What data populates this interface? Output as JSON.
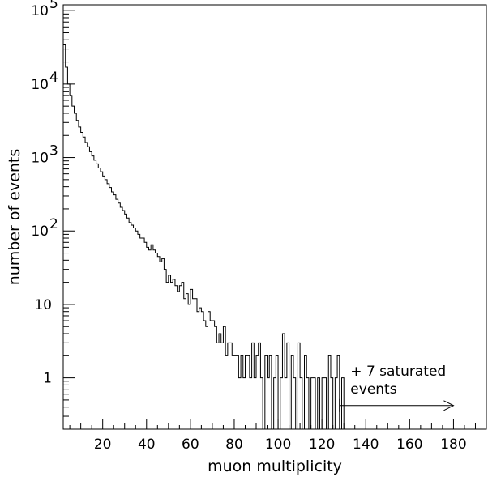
{
  "chart_data": {
    "type": "histogram",
    "xlabel": "muon multiplicity",
    "ylabel": "number of events",
    "xlim": [
      2,
      195
    ],
    "ylim": [
      0.2,
      120000
    ],
    "y_scale": "log",
    "grid": false,
    "x_ticks": [
      {
        "value": 20,
        "label": "20"
      },
      {
        "value": 40,
        "label": "40"
      },
      {
        "value": 60,
        "label": "60"
      },
      {
        "value": 80,
        "label": "80"
      },
      {
        "value": 100,
        "label": "100"
      },
      {
        "value": 120,
        "label": "120"
      },
      {
        "value": 140,
        "label": "140"
      },
      {
        "value": 160,
        "label": "160"
      },
      {
        "value": 180,
        "label": "180"
      }
    ],
    "y_ticks": [
      {
        "value": 1,
        "label": "1",
        "exp": ""
      },
      {
        "value": 10,
        "label": "10",
        "exp": ""
      },
      {
        "value": 100,
        "label": "10",
        "exp": "2"
      },
      {
        "value": 1000,
        "label": "10",
        "exp": "3"
      },
      {
        "value": 10000,
        "label": "10",
        "exp": "4"
      },
      {
        "value": 100000,
        "label": "10",
        "exp": "5"
      }
    ],
    "bins": {
      "start": 2,
      "width": 1,
      "values": [
        35000,
        17000,
        10000,
        7000,
        5000,
        4000,
        3200,
        2600,
        2200,
        1900,
        1600,
        1400,
        1200,
        1050,
        920,
        820,
        720,
        640,
        560,
        500,
        440,
        390,
        340,
        310,
        270,
        240,
        210,
        190,
        170,
        150,
        130,
        120,
        110,
        100,
        90,
        80,
        80,
        70,
        60,
        55,
        65,
        55,
        50,
        45,
        38,
        42,
        30,
        20,
        25,
        20,
        22,
        18,
        15,
        18,
        20,
        12,
        14,
        10,
        16,
        12,
        12,
        8,
        9,
        8,
        6,
        5,
        8,
        6,
        6,
        5,
        3,
        4,
        3,
        5,
        2,
        3,
        3,
        2,
        2,
        2,
        1,
        2,
        1,
        2,
        2,
        1,
        3,
        1,
        2,
        3,
        1,
        0,
        2,
        1,
        2,
        0,
        1,
        2,
        0,
        1,
        4,
        1,
        3,
        0,
        2,
        1,
        0,
        3,
        1,
        0,
        2,
        1,
        0,
        1,
        1,
        0,
        1,
        0,
        1,
        1,
        0,
        2,
        1,
        0,
        1,
        2,
        0,
        1
      ]
    },
    "annotation": {
      "line1": "+ 7 saturated",
      "line2": "events",
      "arrow_from_x": 128,
      "arrow_to_x": 180,
      "arrow_y": 0.42
    }
  }
}
